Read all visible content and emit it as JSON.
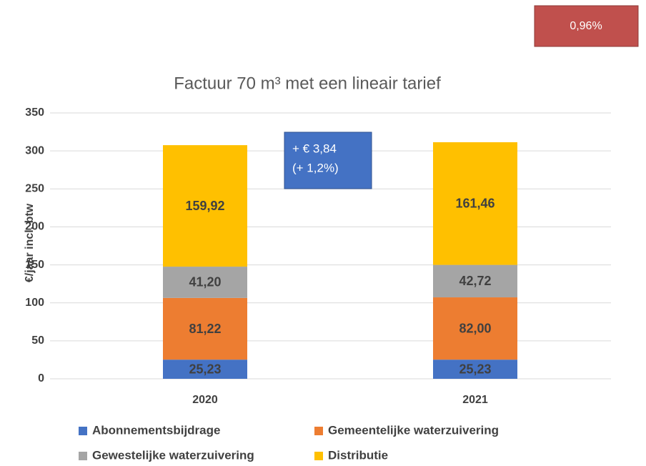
{
  "chart_data": {
    "type": "stacked_bar",
    "title": "Factuur 70 m³ met een lineair tarief",
    "y_label": "€/jaar incl. btw",
    "categories": [
      "2020",
      "2021"
    ],
    "series": [
      {
        "name": "Abonnementsbijdrage",
        "color": "#4472c4",
        "values": [
          25.23,
          25.23
        ],
        "value_labels": [
          "25,23",
          "25,23"
        ]
      },
      {
        "name": "Gemeentelijke waterzuivering",
        "color": "#ed7d31",
        "values": [
          81.22,
          82.0
        ],
        "value_labels": [
          "81,22",
          "82,00"
        ]
      },
      {
        "name": "Gewestelijke waterzuivering",
        "color": "#a5a5a5",
        "values": [
          41.2,
          42.72
        ],
        "value_labels": [
          "41,20",
          "42,72"
        ]
      },
      {
        "name": "Distributie",
        "color": "#ffc000",
        "values": [
          159.92,
          161.46
        ],
        "value_labels": [
          "159,92",
          "161,46"
        ]
      }
    ],
    "ylim": [
      0,
      350
    ],
    "yticks": [
      0,
      50,
      100,
      150,
      200,
      250,
      300,
      350
    ],
    "grid": true,
    "annotations": [
      {
        "text": "0,96%"
      },
      {
        "lines": [
          "+ € 3,84",
          "(+ 1,2%)"
        ]
      }
    ]
  }
}
